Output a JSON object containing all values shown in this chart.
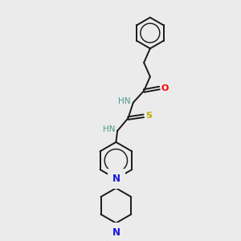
{
  "background_color": "#ebebeb",
  "bond_color": "#1a1a1a",
  "atom_colors": {
    "N": "#1515e0",
    "O": "#ff0000",
    "S": "#b8b000",
    "H": "#4a9a8a"
  },
  "figsize": [
    3.0,
    3.0
  ],
  "dpi": 100,
  "lw": 1.4,
  "fs": 7.5
}
